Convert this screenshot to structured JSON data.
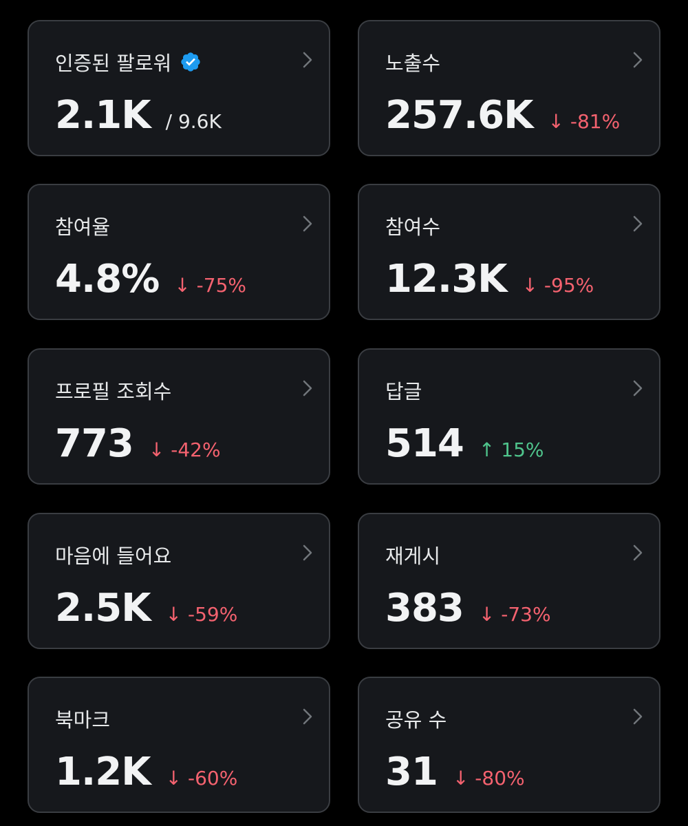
{
  "accent_color": "#1d9bf0",
  "down_color": "#f4626f",
  "up_color": "#4fc48c",
  "cards": [
    {
      "label": "인증된 팔로워",
      "value": "2.1K",
      "sub": "/ 9.6K",
      "verified_icon": "verified-badge-icon"
    },
    {
      "label": "노출수",
      "value": "257.6K",
      "change": "↓ -81%",
      "direction": "down"
    },
    {
      "label": "참여율",
      "value": "4.8%",
      "change": "↓ -75%",
      "direction": "down"
    },
    {
      "label": "참여수",
      "value": "12.3K",
      "change": "↓ -95%",
      "direction": "down"
    },
    {
      "label": "프로필 조회수",
      "value": "773",
      "change": "↓ -42%",
      "direction": "down"
    },
    {
      "label": "답글",
      "value": "514",
      "change": "↑ 15%",
      "direction": "up"
    },
    {
      "label": "마음에 들어요",
      "value": "2.5K",
      "change": "↓ -59%",
      "direction": "down"
    },
    {
      "label": "재게시",
      "value": "383",
      "change": "↓ -73%",
      "direction": "down"
    },
    {
      "label": "북마크",
      "value": "1.2K",
      "change": "↓ -60%",
      "direction": "down"
    },
    {
      "label": "공유 수",
      "value": "31",
      "change": "↓ -80%",
      "direction": "down"
    }
  ]
}
